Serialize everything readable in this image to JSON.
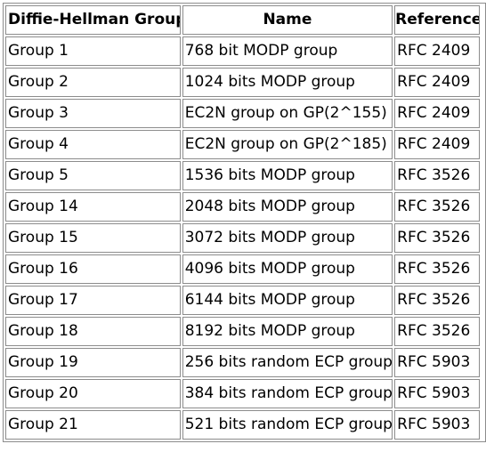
{
  "table": {
    "headers": [
      "Diffie-Hellman Group",
      "Name",
      "Reference"
    ],
    "rows": [
      [
        "Group 1",
        "768 bit MODP group",
        "RFC 2409"
      ],
      [
        "Group 2",
        "1024 bits MODP group",
        "RFC 2409"
      ],
      [
        "Group 3",
        "EC2N group on GP(2^155)",
        "RFC 2409"
      ],
      [
        "Group 4",
        "EC2N group on GP(2^185)",
        "RFC 2409"
      ],
      [
        "Group 5",
        "1536 bits MODP group",
        "RFC 3526"
      ],
      [
        "Group 14",
        "2048 bits MODP group",
        "RFC 3526"
      ],
      [
        "Group 15",
        "3072 bits MODP group",
        "RFC 3526"
      ],
      [
        "Group 16",
        "4096 bits MODP group",
        "RFC 3526"
      ],
      [
        "Group 17",
        "6144 bits MODP group",
        "RFC 3526"
      ],
      [
        "Group 18",
        "8192 bits MODP group",
        "RFC 3526"
      ],
      [
        "Group 19",
        "256 bits random ECP group",
        "RFC 5903"
      ],
      [
        "Group 20",
        "384 bits random ECP group",
        "RFC 5903"
      ],
      [
        "Group 21",
        "521 bits random ECP group",
        "RFC 5903"
      ]
    ]
  }
}
